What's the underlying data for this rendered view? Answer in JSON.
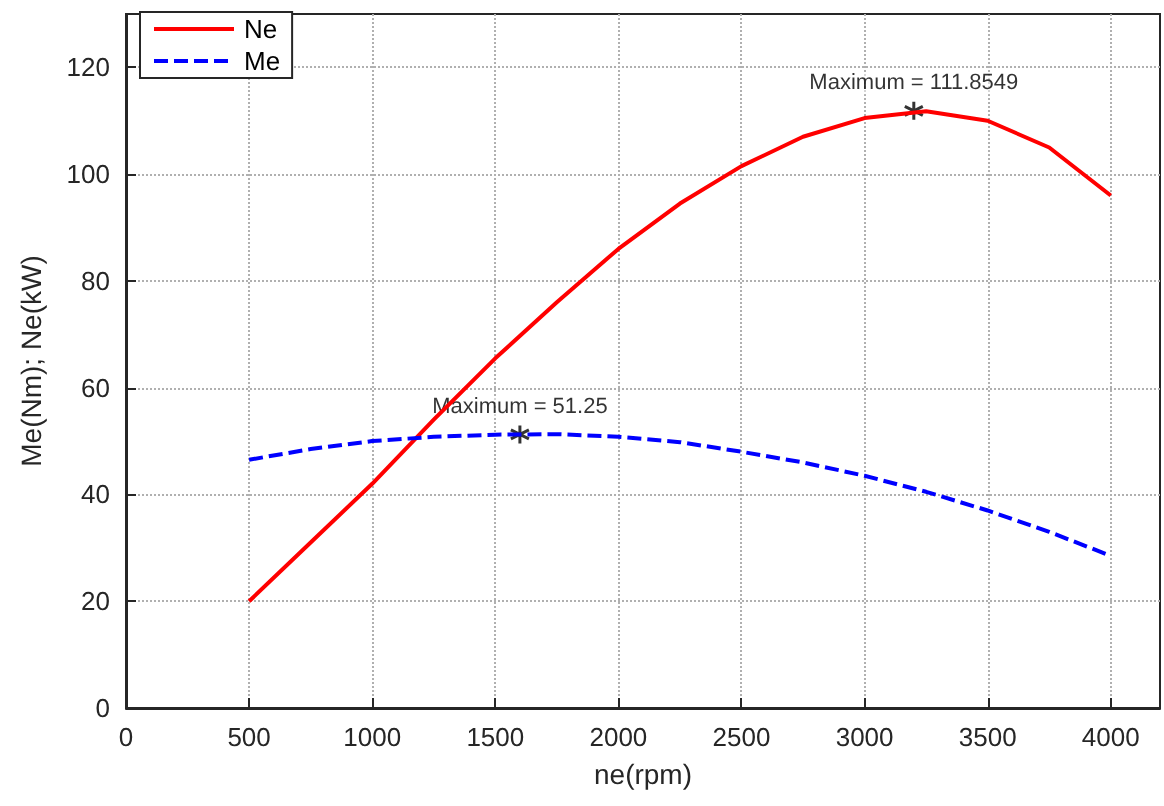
{
  "chart_data": {
    "type": "line",
    "xlabel": "ne(rpm)",
    "ylabel": "Me(Nm); Ne(kW)",
    "xlim": [
      0,
      4200
    ],
    "xticks": [
      0,
      500,
      1000,
      1500,
      2000,
      2500,
      3000,
      3500,
      4000
    ],
    "ylim": [
      0,
      130
    ],
    "yticks": [
      0,
      20,
      40,
      60,
      80,
      100,
      120
    ],
    "grid": true,
    "legend": "top left",
    "marker": "none",
    "x": [
      500,
      750,
      1000,
      1250,
      1500,
      1750,
      2000,
      2250,
      2500,
      2750,
      3000,
      3250,
      3500,
      3750,
      4000
    ],
    "series": [
      {
        "name": "Ne",
        "color": "#ff0000",
        "line_style": "solid",
        "values": [
          20,
          31,
          42,
          54,
          65.5,
          76,
          86,
          94.5,
          101.5,
          107,
          110.5,
          111.8,
          110,
          105,
          96
        ]
      },
      {
        "name": "Me",
        "color": "#0000ff",
        "line_style": "dashed",
        "values": [
          46.5,
          48.5,
          50,
          50.8,
          51.2,
          51.3,
          50.8,
          49.8,
          48,
          46,
          43.5,
          40.5,
          37,
          33,
          28.5
        ]
      }
    ],
    "annotations": [
      {
        "text": "Maximum = 111.8549",
        "x": 3200,
        "y": 111.8549
      },
      {
        "text": "Maximum = 51.25",
        "x": 1600,
        "y": 51.25
      }
    ]
  }
}
